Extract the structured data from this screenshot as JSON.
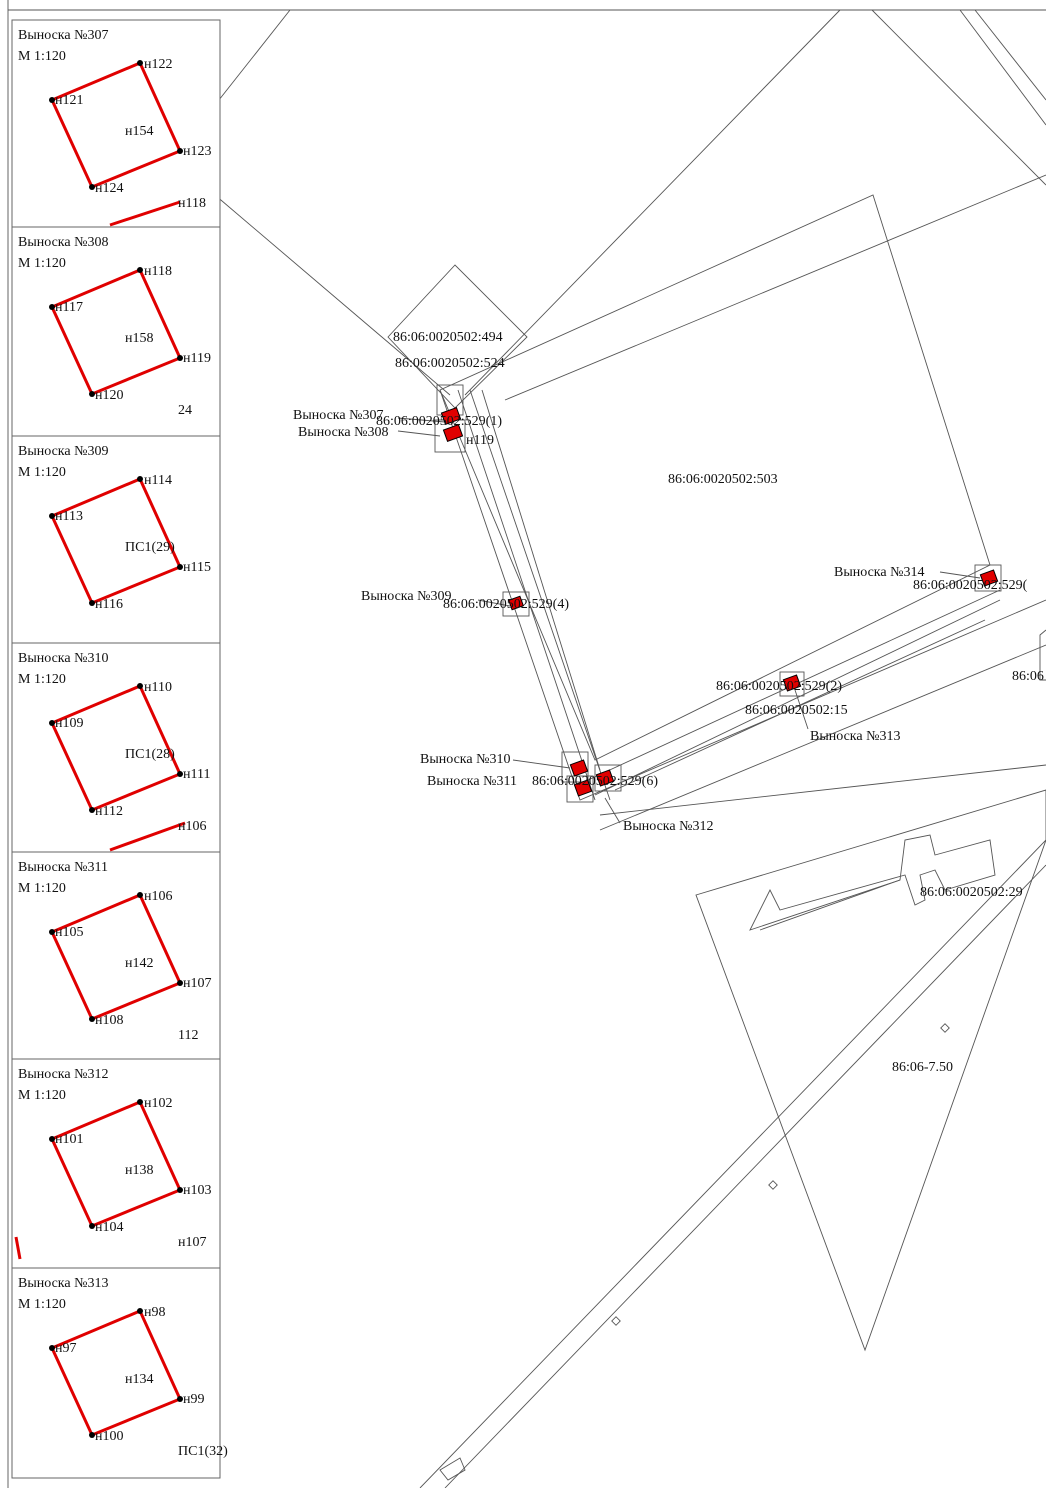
{
  "callouts": [
    {
      "title": "Выноска №307",
      "scale": "М 1:120",
      "points": [
        "н122",
        "н121",
        "н123",
        "н124"
      ],
      "center": "н154",
      "extra": [
        "н118"
      ]
    },
    {
      "title": "Выноска №308",
      "scale": "М 1:120",
      "points": [
        "н118",
        "н117",
        "н119",
        "н120"
      ],
      "center": "н158",
      "extra": [
        "24"
      ]
    },
    {
      "title": "Выноска №309",
      "scale": "М 1:120",
      "points": [
        "н114",
        "н113",
        "н115",
        "н116"
      ],
      "center": "ПС1(29)",
      "extra": []
    },
    {
      "title": "Выноска №310",
      "scale": "М 1:120",
      "points": [
        "н110",
        "н109",
        "н111",
        "н112"
      ],
      "center": "ПС1(28)",
      "extra": [
        "н106"
      ]
    },
    {
      "title": "Выноска №311",
      "scale": "М 1:120",
      "points": [
        "н106",
        "н105",
        "н107",
        "н108"
      ],
      "center": "н142",
      "extra": [
        "112"
      ]
    },
    {
      "title": "Выноска №312",
      "scale": "М 1:120",
      "points": [
        "н102",
        "н101",
        "н103",
        "н104"
      ],
      "center": "н138",
      "extra": [
        "н107"
      ]
    },
    {
      "title": "Выноска №313",
      "scale": "М 1:120",
      "points": [
        "н98",
        "н97",
        "н99",
        "н100"
      ],
      "center": "н134",
      "extra": [
        "ПС1(32)"
      ]
    }
  ],
  "parcels": {
    "p494": "86:06:0020502:494",
    "p524": "86:06:0020502:524",
    "p503": "86:06:0020502:503",
    "p15": "86:06:0020502:15",
    "p29": "86:06:0020502:29",
    "zone": "86:06-7.50",
    "edge": "86:06"
  },
  "map_labels": {
    "c307": "Выноска №307",
    "c308": "Выноска №308",
    "c309": "Выноска №309",
    "c310": "Выноска №310",
    "c311": "Выноска №311",
    "c312": "Выноска №312",
    "c313": "Выноска №313",
    "c314": "Выноска №314",
    "s1": "86:06:0020502:529(1)",
    "s2": "86:06:0020502:529(2)",
    "s4": "86:06:0020502:529(4)",
    "s6": "86:06:0020502:529(6)",
    "s_edge": "86:06:0020502:529(",
    "n119": "н119"
  },
  "colors": {
    "boundary": "#e00000",
    "lines": "#555555"
  }
}
